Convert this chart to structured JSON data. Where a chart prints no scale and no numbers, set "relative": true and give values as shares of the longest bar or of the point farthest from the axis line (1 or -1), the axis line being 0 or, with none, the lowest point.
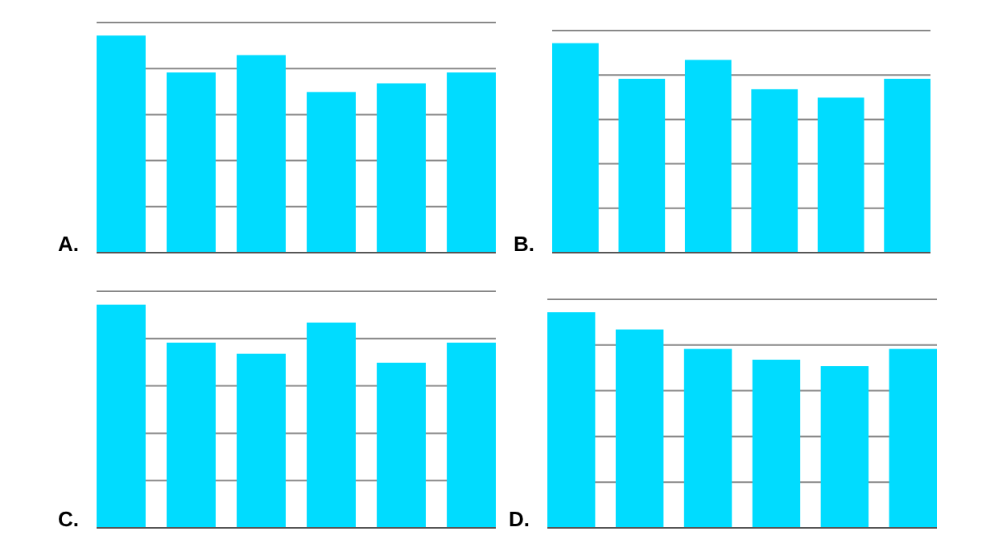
{
  "chart_data": [
    {
      "type": "bar",
      "title": "A.",
      "categories": [
        null,
        null,
        null,
        null,
        null,
        null
      ],
      "values": [
        1,
        0.83,
        0.91,
        0.74,
        0.78,
        0.83
      ],
      "color": "#00dcff",
      "relative": true,
      "grid": true
    },
    {
      "type": "bar",
      "title": "B.",
      "categories": [
        null,
        null,
        null,
        null,
        null,
        null
      ],
      "values": [
        1,
        0.83,
        0.92,
        0.78,
        0.74,
        0.83
      ],
      "color": "#00dcff",
      "relative": true,
      "grid": true
    },
    {
      "type": "bar",
      "title": "C.",
      "categories": [
        null,
        null,
        null,
        null,
        null,
        null
      ],
      "values": [
        1,
        0.83,
        0.78,
        0.92,
        0.74,
        0.83
      ],
      "color": "#00dcff",
      "relative": true,
      "grid": true
    },
    {
      "type": "bar",
      "title": "D.",
      "categories": [
        null,
        null,
        null,
        null,
        null,
        null
      ],
      "values": [
        1,
        0.92,
        0.83,
        0.78,
        0.75,
        0.83
      ],
      "color": "#00dcff",
      "relative": true,
      "grid": true
    }
  ]
}
